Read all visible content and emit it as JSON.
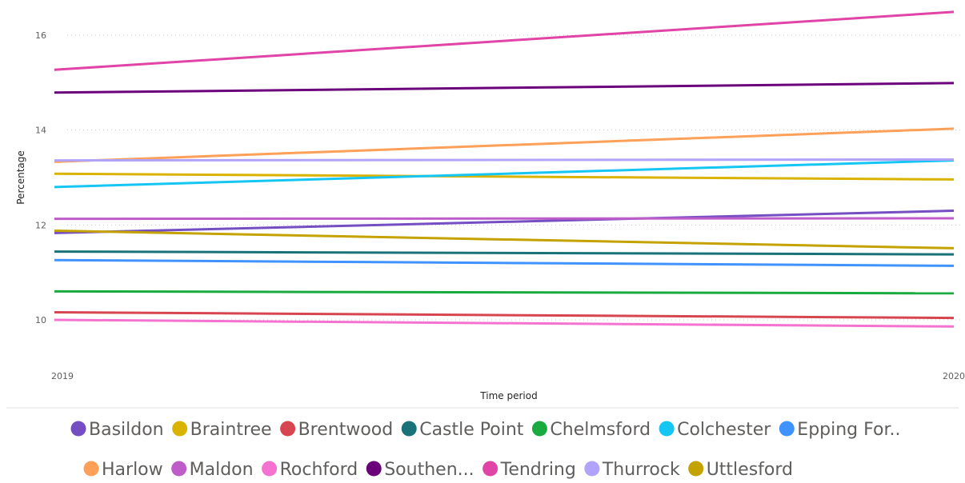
{
  "chart_data": {
    "type": "line",
    "title": "",
    "xlabel": "Time period",
    "ylabel": "Percentage",
    "x": [
      "2019",
      "2020"
    ],
    "ylim": [
      9.4,
      16.6
    ],
    "yticks": [
      "10",
      "12",
      "14",
      "16"
    ],
    "grid": true,
    "legend_position": "bottom",
    "series": [
      {
        "name": "Basildon",
        "values": [
          11.83,
          12.3
        ],
        "color": "#744ec2"
      },
      {
        "name": "Braintree",
        "values": [
          13.08,
          12.96
        ],
        "color": "#d9b300"
      },
      {
        "name": "Brentwood",
        "values": [
          10.16,
          10.04
        ],
        "color": "#d64550"
      },
      {
        "name": "Castle Point",
        "values": [
          11.44,
          11.38
        ],
        "color": "#197278"
      },
      {
        "name": "Chelmsford",
        "values": [
          10.6,
          10.56
        ],
        "color": "#1aab40"
      },
      {
        "name": "Colchester",
        "values": [
          12.8,
          13.36
        ],
        "color": "#15c6f4"
      },
      {
        "name": "Epping For..",
        "values": [
          11.26,
          11.14
        ],
        "color": "#4092ff"
      },
      {
        "name": "Harlow",
        "values": [
          13.33,
          14.03
        ],
        "color": "#ffa058"
      },
      {
        "name": "Maldon",
        "values": [
          12.13,
          12.14
        ],
        "color": "#be5dc9"
      },
      {
        "name": "Rochford",
        "values": [
          10.0,
          9.86
        ],
        "color": "#f472d0"
      },
      {
        "name": "Southen...",
        "values": [
          14.79,
          14.99
        ],
        "color": "#6b007b"
      },
      {
        "name": "Tendring",
        "values": [
          15.27,
          16.49
        ],
        "color": "#e044a7"
      },
      {
        "name": "Thurrock",
        "values": [
          13.36,
          13.38
        ],
        "color": "#b1a3fa"
      },
      {
        "name": "Uttlesford",
        "values": [
          11.88,
          11.51
        ],
        "color": "#c4a200"
      }
    ]
  }
}
